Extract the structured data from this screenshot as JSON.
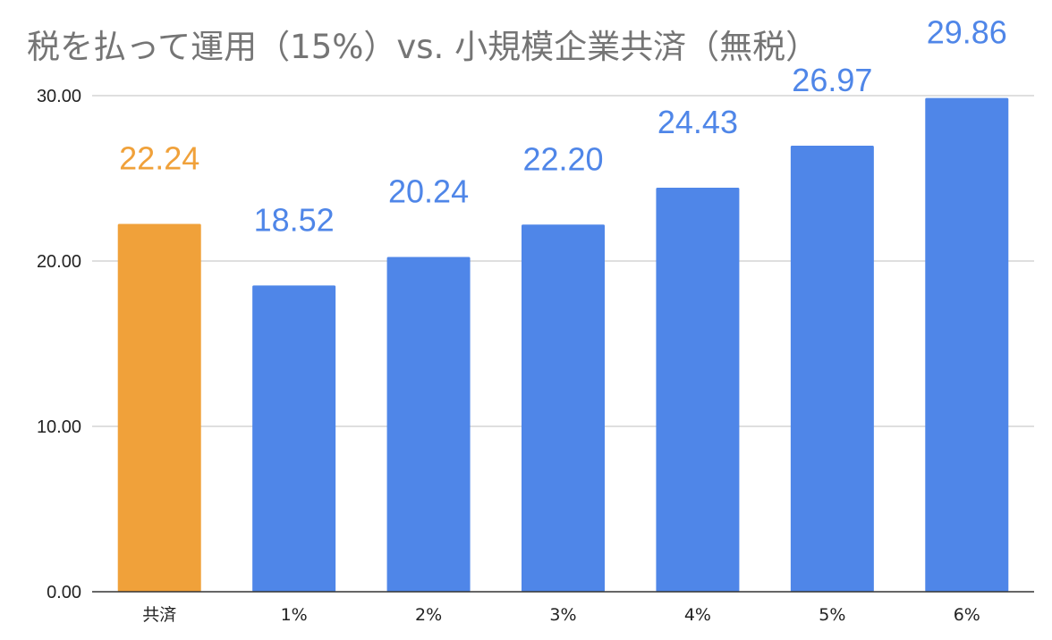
{
  "chart_data": {
    "type": "bar",
    "title": "税を払って運用（15%）vs. 小規模企業共済（無税）",
    "xlabel": "",
    "ylabel": "",
    "categories": [
      "共済",
      "1%",
      "2%",
      "3%",
      "4%",
      "5%",
      "6%"
    ],
    "values": [
      22.24,
      18.52,
      20.24,
      22.2,
      24.43,
      26.97,
      29.86
    ],
    "data_labels": [
      "22.24",
      "18.52",
      "20.24",
      "22.20",
      "24.43",
      "26.97",
      "29.86"
    ],
    "ylim": [
      0,
      30
    ],
    "yticks": [
      0,
      10,
      20,
      30
    ],
    "ytick_labels": [
      "0.00",
      "10.00",
      "20.00",
      "30.00"
    ],
    "grid": true,
    "legend": "none",
    "colors": {
      "highlight": "#F0A13A",
      "bars": "#4F86E8",
      "title": "#757575",
      "grid": "#CCCCCC",
      "axis": "#333333"
    },
    "bar_colors": [
      "highlight",
      "bars",
      "bars",
      "bars",
      "bars",
      "bars",
      "bars"
    ]
  }
}
